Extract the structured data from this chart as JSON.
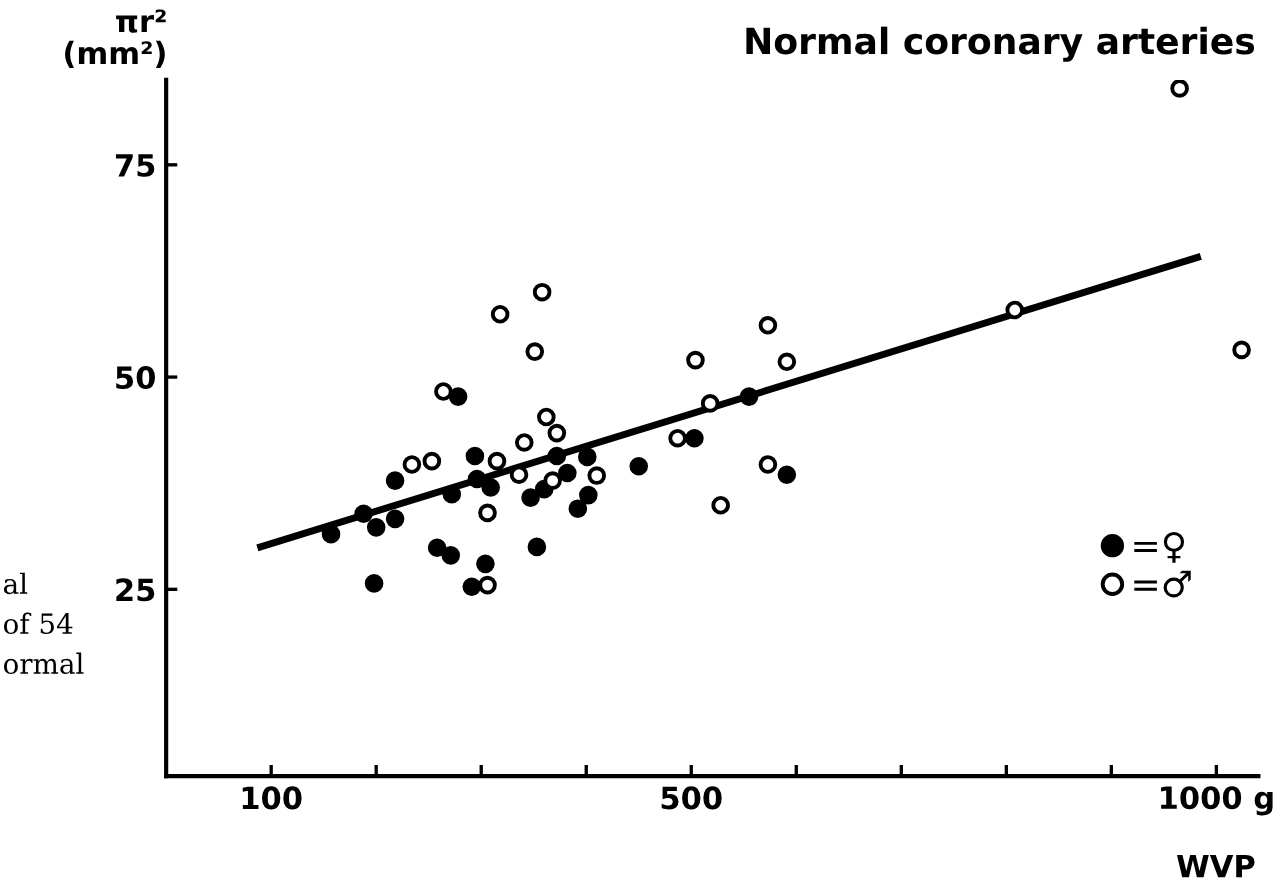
{
  "chart_data": {
    "type": "scatter",
    "title": "Normal coronary arteries",
    "ylabel": "πr²\n(mm²)",
    "xlabel": "WVP",
    "xlim": [
      0,
      1040
    ],
    "ylim": [
      3,
      85
    ],
    "xticks": [
      100,
      {
        "value": 200,
        "label": null
      },
      {
        "value": 300,
        "label": null
      },
      {
        "value": 400,
        "label": null
      },
      500,
      {
        "value": 600,
        "label": null
      },
      {
        "value": 700,
        "label": null
      },
      {
        "value": 800,
        "label": null
      },
      {
        "value": 900,
        "label": null
      },
      {
        "value": 1000,
        "label": "1000 g"
      }
    ],
    "yticks": [
      25,
      50,
      75
    ],
    "grid": false,
    "legend": "bottom right",
    "annotations": [
      "al",
      "of 54",
      "ormal"
    ],
    "series": [
      {
        "name": "=♀",
        "color": "#000000",
        "marker": "circle",
        "x": [
          157,
          188,
          200,
          218,
          218,
          198,
          258,
          271,
          304,
          291,
          278,
          272,
          294,
          296,
          309,
          347,
          353,
          360,
          382,
          372,
          401,
          402,
          392,
          450,
          503,
          555,
          591
        ],
        "values": [
          31.5,
          33.9,
          32.3,
          33.3,
          37.8,
          25.7,
          29.9,
          29.0,
          28.0,
          25.3,
          47.7,
          36.2,
          40.7,
          38.0,
          37.0,
          35.8,
          30.0,
          36.8,
          38.7,
          40.7,
          40.6,
          36.1,
          34.5,
          39.5,
          42.8,
          47.7,
          38.5
        ]
      },
      {
        "name": "=♂",
        "color": "#ffffff",
        "marker": "circle",
        "x": [
          264,
          318,
          358,
          351,
          234,
          253,
          315,
          306,
          306,
          336,
          341,
          362,
          372,
          368,
          410,
          504,
          518,
          487,
          528,
          573,
          591,
          573,
          808,
          1024,
          965
        ],
        "values": [
          48.3,
          57.4,
          60.0,
          53.0,
          39.7,
          40.1,
          40.1,
          34.0,
          25.5,
          38.5,
          42.3,
          45.3,
          43.4,
          37.8,
          38.4,
          52.0,
          46.9,
          42.8,
          34.9,
          56.1,
          51.8,
          39.7,
          57.9,
          53.2,
          84.0
        ]
      },
      {
        "type": "line",
        "color": "#000000",
        "marker": "none",
        "line_style": "solid",
        "x": [
          90,
          982
        ],
        "values": [
          30.0,
          64.1
        ]
      }
    ]
  }
}
